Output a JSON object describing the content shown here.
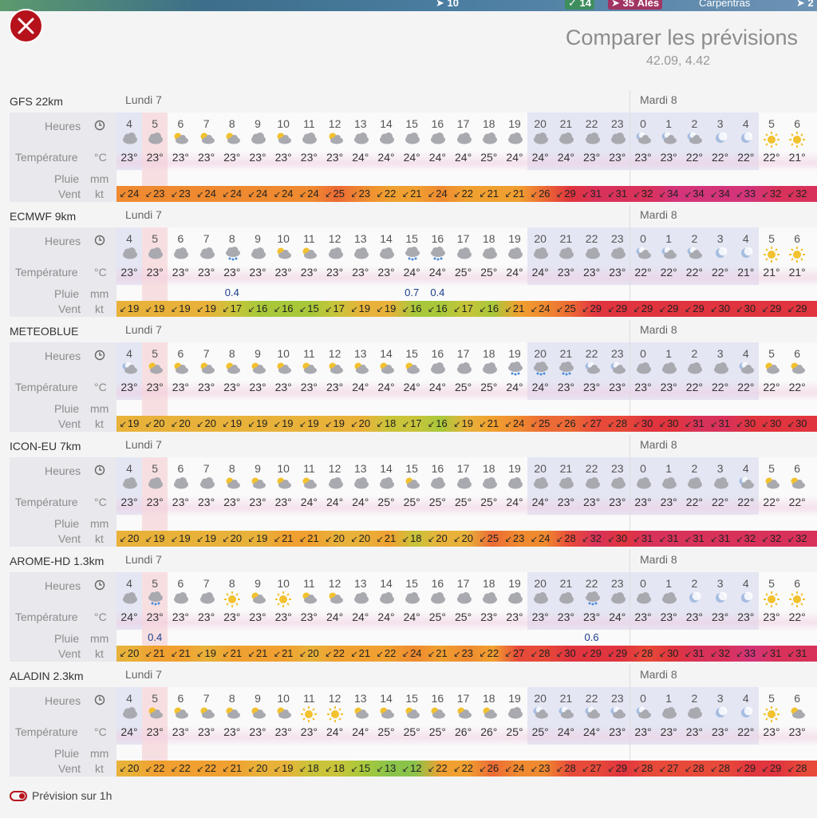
{
  "map": {
    "wind": "10",
    "tag1": "14",
    "tag2": "35",
    "city1": "Alès",
    "city2": "Carpentras",
    "corner": "2"
  },
  "title": "Comparer les prévisions",
  "coords": "42.09, 4.42",
  "labels": {
    "heures": "Heures",
    "temperature": "Température",
    "temp_unit": "°C",
    "pluie": "Pluie",
    "pluie_unit": "mm",
    "vent": "Vent",
    "vent_unit": "kt"
  },
  "toggle_label": "Prévision sur 1h",
  "colors": {
    "accent": "#b5121b",
    "rain_text": "#1a3c8a"
  },
  "hours": [
    "4",
    "5",
    "6",
    "7",
    "8",
    "9",
    "10",
    "11",
    "12",
    "13",
    "14",
    "15",
    "16",
    "17",
    "18",
    "19",
    "20",
    "21",
    "22",
    "23",
    "0",
    "1",
    "2",
    "3",
    "4",
    "5",
    "6"
  ],
  "models": [
    {
      "name": "GFS 22km",
      "day1": "Lundi 7",
      "day2": "Mardi 8",
      "icons": [
        "cloud",
        "cloud",
        "sun-cloud",
        "sun-cloud",
        "sun-cloud",
        "cloud",
        "sun-cloud",
        "cloud",
        "sun-cloud",
        "cloud",
        "cloud",
        "cloud",
        "cloud",
        "cloud",
        "cloud",
        "cloud",
        "cloud",
        "cloud",
        "cloud",
        "cloud",
        "moon-cloud",
        "moon-cloud",
        "moon-cloud",
        "moon",
        "moon",
        "sun",
        "sun"
      ],
      "temps": [
        "23°",
        "23°",
        "23°",
        "23°",
        "23°",
        "23°",
        "23°",
        "23°",
        "23°",
        "24°",
        "24°",
        "24°",
        "24°",
        "24°",
        "25°",
        "24°",
        "24°",
        "24°",
        "23°",
        "23°",
        "23°",
        "23°",
        "22°",
        "22°",
        "22°",
        "22°",
        "21°"
      ],
      "rain": [
        "",
        "",
        "",
        "",
        "",
        "",
        "",
        "",
        "",
        "",
        "",
        "",
        "",
        "",
        "",
        "",
        "",
        "",
        "",
        "",
        "",
        "",
        "",
        "",
        "",
        "",
        ""
      ],
      "wind": [
        "24",
        "23",
        "23",
        "24",
        "24",
        "24",
        "24",
        "24",
        "25",
        "23",
        "22",
        "21",
        "24",
        "22",
        "21",
        "21",
        "26",
        "29",
        "31",
        "31",
        "32",
        "34",
        "34",
        "34",
        "33",
        "32",
        "32"
      ]
    },
    {
      "name": "ECMWF 9km",
      "day1": "Lundi 7",
      "day2": "Mardi 8",
      "icons": [
        "cloud",
        "cloud",
        "cloud",
        "cloud",
        "rain-cloud",
        "cloud",
        "sun-cloud",
        "sun-cloud",
        "cloud",
        "cloud",
        "cloud",
        "rain-cloud",
        "rain-cloud",
        "cloud",
        "cloud",
        "cloud",
        "cloud",
        "cloud",
        "cloud",
        "cloud",
        "moon-cloud",
        "moon-cloud",
        "moon-cloud",
        "moon",
        "moon",
        "sun",
        "sun"
      ],
      "temps": [
        "23°",
        "23°",
        "23°",
        "23°",
        "23°",
        "23°",
        "23°",
        "23°",
        "23°",
        "23°",
        "23°",
        "24°",
        "24°",
        "25°",
        "25°",
        "24°",
        "24°",
        "23°",
        "23°",
        "23°",
        "22°",
        "22°",
        "22°",
        "22°",
        "21°",
        "21°",
        "21°"
      ],
      "rain": [
        "",
        "",
        "",
        "",
        "0.4",
        "",
        "",
        "",
        "",
        "",
        "",
        "0.7",
        "0.4",
        "",
        "",
        "",
        "",
        "",
        "",
        "",
        "",
        "",
        "",
        "",
        "",
        "",
        ""
      ],
      "wind": [
        "19",
        "19",
        "19",
        "19",
        "17",
        "16",
        "16",
        "15",
        "17",
        "19",
        "19",
        "16",
        "16",
        "17",
        "16",
        "21",
        "24",
        "25",
        "29",
        "29",
        "29",
        "29",
        "29",
        "30",
        "30",
        "29",
        "29"
      ]
    },
    {
      "name": "METEOBLUE",
      "day1": "Lundi 7",
      "day2": "Mardi 8",
      "icons": [
        "moon-cloud",
        "sun-cloud",
        "sun-cloud",
        "sun-cloud",
        "sun-cloud",
        "sun-cloud",
        "sun-cloud",
        "sun-cloud",
        "sun-cloud",
        "sun-cloud",
        "sun-cloud",
        "sun-cloud",
        "cloud",
        "cloud",
        "cloud",
        "rain-cloud",
        "rain-cloud",
        "rain-cloud",
        "moon-cloud",
        "moon-cloud",
        "cloud",
        "cloud",
        "cloud",
        "cloud",
        "moon-cloud",
        "sun-cloud",
        "sun-cloud"
      ],
      "temps": [
        "23°",
        "23°",
        "23°",
        "23°",
        "23°",
        "23°",
        "23°",
        "23°",
        "23°",
        "24°",
        "24°",
        "24°",
        "24°",
        "25°",
        "25°",
        "24°",
        "24°",
        "23°",
        "23°",
        "23°",
        "23°",
        "23°",
        "22°",
        "22°",
        "22°",
        "22°",
        "22°"
      ],
      "rain": [
        "",
        "",
        "",
        "",
        "",
        "",
        "",
        "",
        "",
        "",
        "",
        "",
        "",
        "",
        "",
        "",
        "",
        "",
        "",
        "",
        "",
        "",
        "",
        "",
        "",
        "",
        ""
      ],
      "wind": [
        "19",
        "20",
        "20",
        "20",
        "19",
        "19",
        "19",
        "19",
        "19",
        "20",
        "18",
        "17",
        "16",
        "19",
        "21",
        "24",
        "25",
        "26",
        "27",
        "28",
        "30",
        "30",
        "31",
        "31",
        "30",
        "30",
        "30"
      ]
    },
    {
      "name": "ICON-EU 7km",
      "day1": "Lundi 7",
      "day2": "Mardi 8",
      "icons": [
        "cloud",
        "cloud",
        "cloud",
        "cloud",
        "sun-cloud",
        "sun-cloud",
        "sun-cloud",
        "sun-cloud",
        "cloud",
        "cloud",
        "cloud",
        "sun-cloud",
        "cloud",
        "cloud",
        "cloud",
        "cloud",
        "cloud",
        "cloud",
        "cloud",
        "cloud",
        "cloud",
        "cloud",
        "cloud",
        "cloud",
        "moon-cloud",
        "sun-cloud",
        "sun-cloud"
      ],
      "temps": [
        "23°",
        "23°",
        "23°",
        "23°",
        "23°",
        "23°",
        "23°",
        "24°",
        "24°",
        "24°",
        "25°",
        "25°",
        "25°",
        "25°",
        "25°",
        "24°",
        "24°",
        "23°",
        "23°",
        "23°",
        "23°",
        "23°",
        "22°",
        "22°",
        "22°",
        "22°",
        "22°"
      ],
      "rain": [
        "",
        "",
        "",
        "",
        "",
        "",
        "",
        "",
        "",
        "",
        "",
        "",
        "",
        "",
        "",
        "",
        "",
        "",
        "",
        "",
        "",
        "",
        "",
        "",
        "",
        "",
        ""
      ],
      "wind": [
        "20",
        "19",
        "19",
        "19",
        "20",
        "19",
        "21",
        "21",
        "20",
        "20",
        "21",
        "18",
        "20",
        "20",
        "25",
        "23",
        "24",
        "28",
        "32",
        "30",
        "31",
        "31",
        "31",
        "31",
        "32",
        "32",
        "32"
      ]
    },
    {
      "name": "AROME-HD 1.3km",
      "day1": "Lundi 7",
      "day2": "Mardi 8",
      "icons": [
        "cloud",
        "rain-cloud",
        "cloud",
        "cloud",
        "sun",
        "sun-cloud",
        "sun",
        "sun-cloud",
        "sun-cloud",
        "cloud",
        "cloud",
        "cloud",
        "cloud",
        "cloud",
        "cloud",
        "cloud",
        "cloud",
        "cloud",
        "rain-cloud",
        "cloud",
        "cloud",
        "cloud",
        "moon",
        "moon",
        "moon",
        "sun",
        "sun"
      ],
      "temps": [
        "24°",
        "23°",
        "23°",
        "23°",
        "23°",
        "23°",
        "23°",
        "23°",
        "24°",
        "24°",
        "24°",
        "24°",
        "25°",
        "25°",
        "23°",
        "23°",
        "23°",
        "23°",
        "23°",
        "24°",
        "23°",
        "23°",
        "23°",
        "23°",
        "23°",
        "23°",
        "22°"
      ],
      "rain": [
        "",
        "0.4",
        "",
        "",
        "",
        "",
        "",
        "",
        "",
        "",
        "",
        "",
        "",
        "",
        "",
        "",
        "",
        "",
        "0.6",
        "",
        "",
        "",
        "",
        "",
        "",
        "",
        ""
      ],
      "wind": [
        "20",
        "21",
        "21",
        "19",
        "21",
        "21",
        "21",
        "20",
        "22",
        "21",
        "22",
        "24",
        "21",
        "23",
        "22",
        "27",
        "28",
        "30",
        "29",
        "29",
        "28",
        "30",
        "31",
        "32",
        "33",
        "31",
        "31"
      ]
    },
    {
      "name": "ALADIN 2.3km",
      "day1": "Lundi 7",
      "day2": "Mardi 8",
      "icons": [
        "cloud",
        "sun-cloud",
        "sun-cloud",
        "sun-cloud",
        "sun-cloud",
        "sun-cloud",
        "sun-cloud",
        "sun",
        "sun",
        "sun-cloud",
        "sun-cloud",
        "sun-cloud",
        "sun-cloud",
        "sun-cloud",
        "sun-cloud",
        "cloud",
        "moon-cloud",
        "moon-cloud",
        "moon-cloud",
        "moon-cloud",
        "moon-cloud",
        "cloud",
        "cloud",
        "moon",
        "moon",
        "sun",
        "sun-cloud"
      ],
      "temps": [
        "24°",
        "23°",
        "23°",
        "23°",
        "23°",
        "23°",
        "23°",
        "23°",
        "24°",
        "24°",
        "25°",
        "25°",
        "25°",
        "26°",
        "26°",
        "25°",
        "25°",
        "24°",
        "24°",
        "23°",
        "23°",
        "23°",
        "23°",
        "23°",
        "22°",
        "23°",
        "23°"
      ],
      "rain": [
        "",
        "",
        "",
        "",
        "",
        "",
        "",
        "",
        "",
        "",
        "",
        "",
        "",
        "",
        "",
        "",
        "",
        "",
        "",
        "",
        "",
        "",
        "",
        "",
        "",
        "",
        ""
      ],
      "wind": [
        "20",
        "22",
        "22",
        "22",
        "21",
        "20",
        "19",
        "18",
        "18",
        "15",
        "13",
        "12",
        "22",
        "22",
        "26",
        "24",
        "23",
        "28",
        "27",
        "29",
        "28",
        "27",
        "28",
        "28",
        "29",
        "29",
        "28"
      ]
    }
  ]
}
